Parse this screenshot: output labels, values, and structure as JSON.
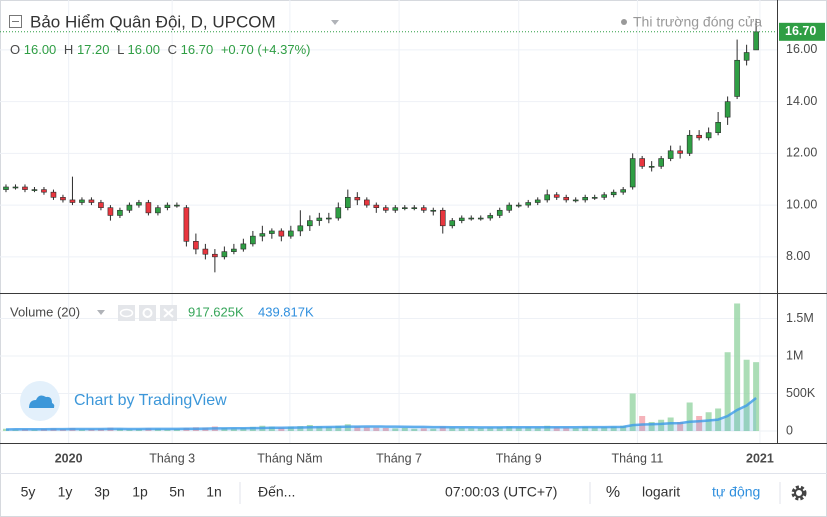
{
  "header": {
    "symbol": "Bảo Hiểm Quân Đội, D, UPCOM",
    "market_status": "Thi trường đóng cửa",
    "ohlc": [
      {
        "key": "O",
        "value": "16.00"
      },
      {
        "key": "H",
        "value": "17.20"
      },
      {
        "key": "L",
        "value": "16.00"
      },
      {
        "key": "C",
        "value": "16.70"
      }
    ],
    "change": "+0.70 (+4.37%)"
  },
  "chart_data": [
    {
      "type": "candlestick",
      "up_color": "#2f9e44",
      "down_color": "#e8363f",
      "grid": true,
      "open": [
        10.6,
        10.7,
        10.7,
        10.6,
        10.6,
        10.5,
        10.3,
        10.2,
        10.1,
        10.2,
        10.1,
        9.9,
        9.6,
        9.8,
        10.0,
        10.1,
        9.7,
        9.9,
        10.0,
        9.9,
        8.6,
        8.3,
        8.1,
        8.0,
        8.2,
        8.3,
        8.5,
        8.8,
        8.9,
        9.0,
        8.8,
        9.0,
        9.2,
        9.4,
        9.5,
        9.5,
        9.9,
        10.3,
        10.2,
        10.0,
        9.9,
        9.8,
        9.9,
        9.9,
        9.9,
        9.8,
        9.8,
        9.2,
        9.4,
        9.5,
        9.5,
        9.5,
        9.6,
        9.8,
        10.0,
        10.0,
        10.1,
        10.2,
        10.4,
        10.3,
        10.2,
        10.2,
        10.3,
        10.3,
        10.4,
        10.5,
        10.7,
        11.8,
        11.5,
        11.5,
        11.8,
        12.1,
        12.0,
        12.7,
        12.6,
        12.8,
        13.4,
        14.2,
        15.6,
        16.0
      ],
      "high": [
        10.8,
        10.8,
        10.8,
        10.7,
        10.7,
        10.6,
        10.4,
        11.1,
        10.3,
        10.3,
        10.2,
        10.0,
        9.9,
        10.1,
        10.2,
        10.2,
        10.0,
        10.1,
        10.1,
        10.0,
        8.9,
        8.5,
        8.3,
        8.4,
        8.5,
        8.7,
        9.0,
        9.2,
        9.1,
        9.1,
        9.2,
        9.8,
        9.6,
        9.7,
        9.7,
        10.1,
        10.6,
        10.5,
        10.3,
        10.1,
        10.0,
        10.0,
        10.0,
        10.0,
        10.0,
        9.9,
        9.9,
        9.5,
        9.6,
        9.6,
        9.6,
        9.7,
        9.9,
        10.1,
        10.1,
        10.2,
        10.3,
        10.6,
        10.5,
        10.4,
        10.3,
        10.4,
        10.4,
        10.5,
        10.6,
        10.7,
        12.0,
        11.9,
        11.7,
        11.9,
        12.3,
        12.3,
        12.9,
        12.9,
        13.0,
        13.6,
        14.2,
        16.4,
        16.2,
        17.2
      ],
      "low": [
        10.5,
        10.6,
        10.5,
        10.5,
        10.4,
        10.2,
        10.1,
        10.0,
        10.0,
        10.0,
        9.8,
        9.4,
        9.5,
        9.7,
        9.9,
        9.6,
        9.6,
        9.8,
        9.9,
        8.4,
        8.1,
        7.9,
        7.4,
        7.9,
        8.1,
        8.2,
        8.4,
        8.6,
        8.7,
        8.6,
        8.7,
        8.8,
        9.0,
        9.2,
        9.3,
        9.4,
        9.8,
        10.0,
        9.9,
        9.7,
        9.7,
        9.7,
        9.8,
        9.8,
        9.7,
        9.6,
        8.9,
        9.1,
        9.3,
        9.4,
        9.4,
        9.4,
        9.5,
        9.7,
        9.9,
        9.9,
        10.0,
        10.1,
        10.2,
        10.1,
        10.1,
        10.1,
        10.2,
        10.2,
        10.3,
        10.4,
        10.6,
        11.4,
        11.3,
        11.4,
        11.7,
        11.8,
        11.9,
        12.5,
        12.5,
        12.7,
        13.1,
        14.1,
        15.4,
        16.0
      ],
      "close": [
        10.7,
        10.7,
        10.6,
        10.6,
        10.5,
        10.3,
        10.2,
        10.1,
        10.2,
        10.1,
        9.9,
        9.6,
        9.8,
        10.0,
        10.1,
        9.7,
        9.9,
        10.0,
        10.0,
        8.6,
        8.3,
        8.1,
        8.0,
        8.2,
        8.3,
        8.5,
        8.8,
        8.9,
        9.0,
        8.8,
        9.0,
        9.2,
        9.4,
        9.5,
        9.5,
        9.9,
        10.3,
        10.2,
        10.0,
        9.9,
        9.8,
        9.9,
        9.9,
        9.9,
        9.8,
        9.8,
        9.2,
        9.4,
        9.5,
        9.5,
        9.5,
        9.6,
        9.8,
        10.0,
        10.0,
        10.1,
        10.2,
        10.4,
        10.3,
        10.2,
        10.2,
        10.3,
        10.3,
        10.4,
        10.5,
        10.6,
        11.8,
        11.5,
        11.5,
        11.8,
        12.1,
        12.0,
        12.7,
        12.6,
        12.8,
        13.2,
        14.0,
        15.6,
        15.9,
        16.7
      ],
      "last_label": "16.70",
      "xlim": [
        -0.63,
        81.2
      ],
      "xticks": [
        {
          "value": 6.6,
          "label": "2020"
        },
        {
          "value": 17.5,
          "label": "Tháng 3"
        },
        {
          "value": 29.9,
          "label": "Tháng Năm"
        },
        {
          "value": 41.4,
          "label": "Tháng 7"
        },
        {
          "value": 54.0,
          "label": "Tháng 9"
        },
        {
          "value": 66.5,
          "label": "Tháng 11"
        },
        {
          "value": 79.4,
          "label": "2021"
        }
      ],
      "ylim": [
        6.64,
        17.93
      ],
      "yticks": [
        {
          "value": 8,
          "label": "8.00"
        },
        {
          "value": 10,
          "label": "10.00"
        },
        {
          "value": 12,
          "label": "12.00"
        },
        {
          "value": 14,
          "label": "14.00"
        },
        {
          "value": 16,
          "label": "16.00"
        }
      ]
    },
    {
      "type": "volume",
      "title": "Volume (20)",
      "ma_color": "#3d9be9",
      "up_color": "#8fd19e",
      "down_color": "#f29aa3",
      "values": [
        30000,
        20000,
        25000,
        20000,
        30000,
        35000,
        25000,
        40000,
        20000,
        25000,
        30000,
        45000,
        30000,
        20000,
        25000,
        35000,
        30000,
        20000,
        25000,
        40000,
        50000,
        45000,
        60000,
        40000,
        35000,
        40000,
        55000,
        70000,
        60000,
        45000,
        60000,
        65000,
        80000,
        60000,
        55000,
        70000,
        90000,
        60000,
        50000,
        45000,
        40000,
        35000,
        40000,
        30000,
        35000,
        30000,
        60000,
        45000,
        40000,
        35000,
        40000,
        45000,
        50000,
        60000,
        45000,
        50000,
        45000,
        70000,
        50000,
        45000,
        40000,
        55000,
        45000,
        50000,
        60000,
        70000,
        500000,
        200000,
        120000,
        150000,
        180000,
        120000,
        380000,
        200000,
        250000,
        300000,
        1050000,
        1700000,
        950000,
        917625
      ],
      "ma": [
        20000,
        22000,
        22000,
        23000,
        24000,
        25000,
        25000,
        26000,
        26000,
        26000,
        27000,
        28000,
        28000,
        27000,
        27000,
        28000,
        28000,
        28000,
        28000,
        29000,
        30000,
        32000,
        34000,
        35000,
        36000,
        37000,
        38000,
        40000,
        42000,
        43000,
        45000,
        47000,
        50000,
        52000,
        53000,
        55000,
        58000,
        59000,
        60000,
        60000,
        59000,
        58000,
        57000,
        55000,
        54000,
        52000,
        52000,
        51000,
        50000,
        49000,
        48000,
        48000,
        48000,
        49000,
        49000,
        50000,
        50000,
        51000,
        51000,
        51000,
        51000,
        52000,
        52000,
        52000,
        53000,
        54000,
        78000,
        86000,
        90000,
        95000,
        102000,
        105000,
        122000,
        130000,
        140000,
        152000,
        200000,
        280000,
        340000,
        439817
      ],
      "legend_values": [
        "917.625K",
        "439.817K"
      ],
      "ylim": [
        -160000,
        1813000
      ],
      "yticks": [
        0,
        {
          "value": 500000,
          "label": "500K"
        },
        {
          "value": 1000000,
          "label": "1M"
        },
        {
          "value": 1500000,
          "label": "1.5M"
        }
      ]
    }
  ],
  "watermark": "Chart by TradingView",
  "toolbar": {
    "ranges": [
      "5y",
      "1y",
      "3p",
      "1p",
      "5n",
      "1n"
    ],
    "goto": "Đến...",
    "time": "07:00:03 (UTC+7)",
    "percent": "%",
    "log": "logarit",
    "auto": "tự động"
  }
}
